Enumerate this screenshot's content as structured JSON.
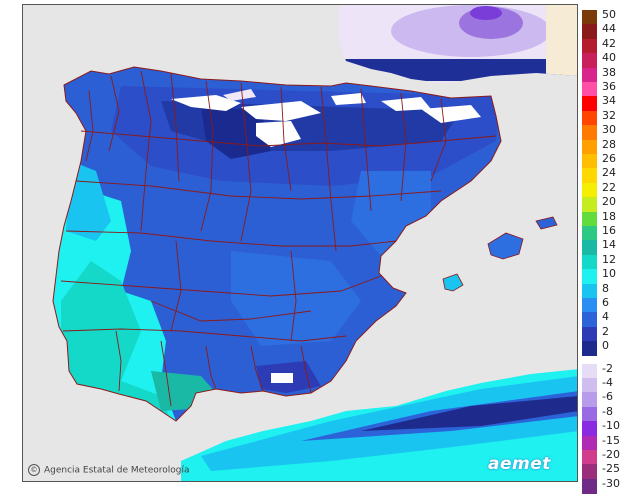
{
  "credit": {
    "symbol": "©",
    "text": "Agencia Estatal de Meteorología"
  },
  "logo": "aemet",
  "legend": {
    "items": [
      {
        "label": "50",
        "color": "#7a3a0a"
      },
      {
        "label": "44",
        "color": "#8b1a1a"
      },
      {
        "label": "42",
        "color": "#b31d2d"
      },
      {
        "label": "40",
        "color": "#c8205a"
      },
      {
        "label": "38",
        "color": "#d8248c"
      },
      {
        "label": "36",
        "color": "#ff4fa6"
      },
      {
        "label": "34",
        "color": "#ff0000"
      },
      {
        "label": "32",
        "color": "#ff4500"
      },
      {
        "label": "30",
        "color": "#ff7a00"
      },
      {
        "label": "28",
        "color": "#ff9f00"
      },
      {
        "label": "26",
        "color": "#ffbf00"
      },
      {
        "label": "24",
        "color": "#ffd800"
      },
      {
        "label": "22",
        "color": "#f5ee00"
      },
      {
        "label": "20",
        "color": "#c5ec1e"
      },
      {
        "label": "18",
        "color": "#62dc3c"
      },
      {
        "label": "16",
        "color": "#2ec885"
      },
      {
        "label": "14",
        "color": "#1ab9a6"
      },
      {
        "label": "12",
        "color": "#14d9c8"
      },
      {
        "label": "10",
        "color": "#1ff0f0"
      },
      {
        "label": "8",
        "color": "#19c5f0"
      },
      {
        "label": "6",
        "color": "#2b8ef2"
      },
      {
        "label": "4",
        "color": "#2c63d8"
      },
      {
        "label": "2",
        "color": "#2d3cb4"
      },
      {
        "label": "0",
        "color": "#1e2a8c"
      },
      {
        "label": "-2",
        "color": "#e6dcf6"
      },
      {
        "label": "-4",
        "color": "#cfbdf0"
      },
      {
        "label": "-6",
        "color": "#b69ceb"
      },
      {
        "label": "-8",
        "color": "#9a6ae4"
      },
      {
        "label": "-10",
        "color": "#8a2be2"
      },
      {
        "label": "-15",
        "color": "#b02ab4"
      },
      {
        "label": "-20",
        "color": "#d23c8c"
      },
      {
        "label": "-25",
        "color": "#9b2d7a"
      },
      {
        "label": "-30",
        "color": "#6e2a86"
      }
    ]
  }
}
